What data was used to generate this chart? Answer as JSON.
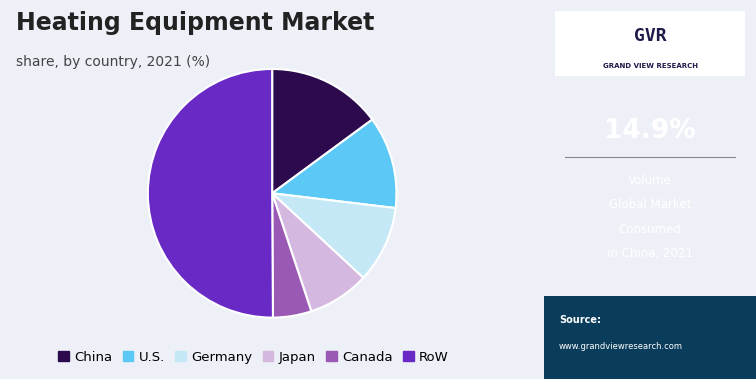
{
  "title": "Heating Equipment Market",
  "subtitle": "share, by country, 2021 (%)",
  "labels": [
    "China",
    "U.S.",
    "Germany",
    "Japan",
    "Canada",
    "RoW"
  ],
  "values": [
    14.9,
    12.0,
    10.0,
    8.0,
    5.0,
    50.1
  ],
  "colors": [
    "#2d0a4e",
    "#5bc8f5",
    "#c5e8f7",
    "#d4b8e0",
    "#9b59b6",
    "#6929c4"
  ],
  "startangle": 90,
  "highlight_pct": "14.9%",
  "highlight_lines": [
    "Volume",
    "Global Market",
    "Consumed",
    "in China, 2021"
  ],
  "source_line1": "Source:",
  "source_line2": "www.grandviewresearch.com",
  "sidebar_bg": "#1e1b4b",
  "sidebar_bottom_bg": "#0a3d5c",
  "main_bg": "#eef0f8",
  "title_fontsize": 17,
  "subtitle_fontsize": 10,
  "legend_fontsize": 9.5
}
